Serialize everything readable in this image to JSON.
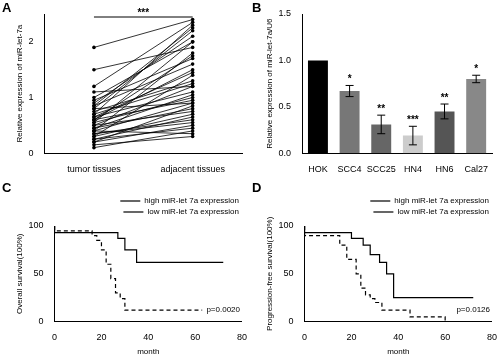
{
  "chart_data": [
    {
      "type": "paired",
      "title": "A",
      "categories": [
        "tumor tissues",
        "adjacent tissues"
      ],
      "y_label": "Relative expression of miR-let-7a",
      "annotation": "***",
      "color": "#000000",
      "pairs": [
        [
          0.2,
          0.5
        ],
        [
          0.3,
          0.7
        ],
        [
          0.4,
          0.9
        ],
        [
          0.5,
          1.2
        ],
        [
          0.6,
          1.5
        ],
        [
          0.7,
          2.3
        ],
        [
          0.8,
          2.2
        ],
        [
          0.9,
          2.1
        ],
        [
          1.0,
          2.0
        ],
        [
          1.2,
          2.35
        ],
        [
          1.5,
          1.9
        ],
        [
          1.9,
          2.4
        ],
        [
          0.15,
          0.3
        ],
        [
          0.25,
          0.45
        ],
        [
          0.35,
          0.6
        ],
        [
          0.45,
          0.8
        ],
        [
          0.55,
          1.0
        ],
        [
          0.65,
          1.1
        ],
        [
          0.75,
          1.3
        ],
        [
          0.85,
          1.6
        ],
        [
          0.95,
          1.7
        ],
        [
          0.3,
          1.4
        ],
        [
          0.4,
          1.8
        ],
        [
          0.5,
          0.75
        ],
        [
          0.6,
          0.95
        ],
        [
          0.7,
          1.25
        ],
        [
          0.2,
          0.85
        ],
        [
          0.1,
          0.4
        ],
        [
          0.55,
          2.0
        ],
        [
          0.85,
          2.25
        ],
        [
          0.45,
          1.05
        ],
        [
          0.35,
          0.55
        ],
        [
          0.65,
          1.45
        ],
        [
          1.1,
          1.2
        ],
        [
          0.8,
          0.9
        ],
        [
          0.25,
          0.65
        ],
        [
          0.6,
          1.75
        ],
        [
          0.4,
          0.35
        ]
      ],
      "ylim": [
        0,
        2.5
      ],
      "yticks": [
        0,
        1,
        2
      ],
      "grid": false
    },
    {
      "type": "bar",
      "title": "B",
      "categories": [
        "HOK",
        "SCC4",
        "SCC25",
        "HN4",
        "HN6",
        "Cal27"
      ],
      "values": [
        1.0,
        0.67,
        0.31,
        0.19,
        0.45,
        0.8
      ],
      "errors": [
        0,
        0.06,
        0.1,
        0.1,
        0.08,
        0.04
      ],
      "annotations": [
        null,
        "*",
        "**",
        "***",
        "**",
        "*"
      ],
      "colors": [
        "#000000",
        "#777777",
        "#666666",
        "#cccccc",
        "#555555",
        "#888888"
      ],
      "y_label": "Relative expression of miR-let-7a/U6",
      "ylim": [
        0,
        1.5
      ],
      "yticks": [
        {
          "value": 0,
          "label": "0.0"
        },
        0.5,
        {
          "value": 1,
          "label": "1.0"
        },
        1.5
      ],
      "grid": false
    },
    {
      "type": "line",
      "title": "C",
      "x_label": "month",
      "y_label": "Overall survival(100%)",
      "annotation": "p=0.0020",
      "series": [
        {
          "name": "high miR-let 7a expression",
          "color": "#000000",
          "line_style": "solid",
          "x": [
            0,
            27,
            30,
            35,
            37,
            72
          ],
          "values": [
            100,
            93,
            87,
            75,
            62,
            62
          ]
        },
        {
          "name": "low miR-let 7a expression",
          "color": "#000000",
          "line_style": "dashed",
          "x": [
            0,
            16,
            18,
            20,
            22,
            24,
            26,
            28,
            30,
            60,
            63
          ],
          "values": [
            100,
            95,
            90,
            85,
            75,
            60,
            45,
            30,
            24,
            12,
            12
          ]
        }
      ],
      "xlim": [
        0,
        80
      ],
      "xticks": [
        0,
        20,
        40,
        60,
        80
      ],
      "ylim": [
        0,
        100
      ],
      "yticks": [
        0,
        50,
        100
      ],
      "grid": false,
      "legend": "top-right"
    },
    {
      "type": "line",
      "title": "D",
      "x_label": "month",
      "y_label": "Progression-free survival(100%)",
      "annotation": "p=0.0126",
      "series": [
        {
          "name": "high miR-let 7a expression",
          "color": "#000000",
          "line_style": "solid",
          "x": [
            0,
            20,
            25,
            28,
            32,
            35,
            38,
            45,
            72
          ],
          "values": [
            100,
            93,
            87,
            80,
            70,
            62,
            50,
            25,
            25
          ]
        },
        {
          "name": "low miR-let 7a expression",
          "color": "#000000",
          "line_style": "dashed",
          "x": [
            0,
            15,
            18,
            22,
            24,
            26,
            28,
            30,
            33,
            45,
            60,
            63
          ],
          "values": [
            100,
            90,
            80,
            65,
            50,
            35,
            28,
            24,
            20,
            12,
            5,
            0
          ]
        }
      ],
      "xlim": [
        0,
        80
      ],
      "xticks": [
        0,
        20,
        40,
        60,
        80
      ],
      "ylim": [
        0,
        100
      ],
      "yticks": [
        0,
        50,
        100
      ],
      "grid": false,
      "legend": "top-right"
    }
  ]
}
